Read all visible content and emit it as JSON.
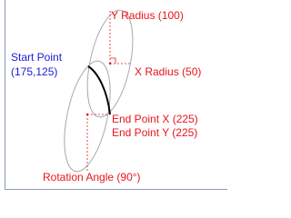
{
  "labels": {
    "y_radius": "Y Radius (100)",
    "start_point": "Start Point",
    "start_coords": "(175,125)",
    "x_radius": "X Radius (50)",
    "end_point_x": "End Point X (225)",
    "end_point_y": "End Point Y (225)",
    "rotation_angle": "Rotation Angle (90°)"
  }
}
